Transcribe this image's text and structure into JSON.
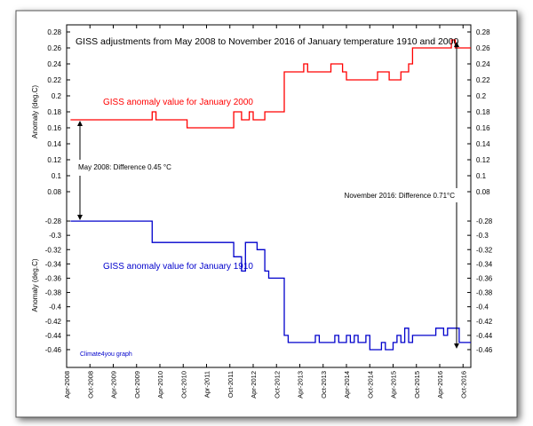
{
  "chart_data": {
    "type": "line",
    "title": "GISS adjustments from May 2008 to November 2016 of January temperature 1910 and 2000",
    "watermark": "Climate4you graph",
    "x_ticks": [
      "Apr-2008",
      "Oct-2008",
      "Apr-2009",
      "Oct-2009",
      "Apr-2010",
      "Oct-2010",
      "Apr-2011",
      "Oct-2011",
      "Apr-2012",
      "Oct-2012",
      "Apr-2013",
      "Oct-2013",
      "Apr-2014",
      "Oct-2014",
      "Apr-2015",
      "Oct-2015",
      "Apr-2016",
      "Oct-2016"
    ],
    "x_range": [
      "2008-04",
      "2016-12"
    ],
    "panels": [
      {
        "ylabel": "Anomaly (deg.C)",
        "ylim": [
          0.08,
          0.28
        ],
        "y_ticks": [
          "0.08",
          "0.1",
          "0.12",
          "0.14",
          "0.16",
          "0.18",
          "0.2",
          "0.22",
          "0.24",
          "0.26",
          "0.28"
        ],
        "series": [
          {
            "name": "GISS anomaly value for January 2000",
            "color": "#ff0000",
            "x": [
              "2008-05",
              "2010-02",
              "2010-03",
              "2010-11",
              "2011-11",
              "2012-01",
              "2012-03",
              "2012-04",
              "2012-07",
              "2012-12",
              "2013-05",
              "2013-06",
              "2013-12",
              "2014-03",
              "2014-04",
              "2014-12",
              "2015-03",
              "2015-06",
              "2015-08",
              "2015-09",
              "2016-07",
              "2016-08",
              "2016-12"
            ],
            "y": [
              0.17,
              0.18,
              0.17,
              0.16,
              0.18,
              0.17,
              0.18,
              0.17,
              0.18,
              0.23,
              0.24,
              0.23,
              0.24,
              0.23,
              0.22,
              0.23,
              0.22,
              0.23,
              0.24,
              0.26,
              0.27,
              0.26,
              0.26
            ]
          }
        ]
      },
      {
        "ylabel": "Anomaly (deg.C)",
        "ylim": [
          -0.47,
          -0.27
        ],
        "y_ticks": [
          "-0.28",
          "-0.3",
          "-0.32",
          "-0.34",
          "-0.36",
          "-0.38",
          "-0.4",
          "-0.42",
          "-0.44",
          "-0.46"
        ],
        "series": [
          {
            "name": "GISS anomaly value for January 1910",
            "color": "#0000cc",
            "x": [
              "2008-05",
              "2010-02",
              "2011-11",
              "2012-01",
              "2012-02",
              "2012-05",
              "2012-07",
              "2012-08",
              "2012-10",
              "2012-12",
              "2013-01",
              "2013-02",
              "2013-08",
              "2013-09",
              "2014-01",
              "2014-02",
              "2014-04",
              "2014-05",
              "2014-06",
              "2014-07",
              "2014-09",
              "2014-10",
              "2015-01",
              "2015-02",
              "2015-04",
              "2015-05",
              "2015-06",
              "2015-07",
              "2015-08",
              "2015-09",
              "2016-02",
              "2016-03",
              "2016-05",
              "2016-06",
              "2016-08",
              "2016-09",
              "2016-10",
              "2016-11",
              "2016-12"
            ],
            "y": [
              -0.28,
              -0.31,
              -0.33,
              -0.35,
              -0.31,
              -0.32,
              -0.35,
              -0.36,
              -0.36,
              -0.44,
              -0.45,
              -0.45,
              -0.44,
              -0.45,
              -0.44,
              -0.45,
              -0.44,
              -0.45,
              -0.44,
              -0.45,
              -0.44,
              -0.46,
              -0.45,
              -0.46,
              -0.45,
              -0.44,
              -0.45,
              -0.43,
              -0.45,
              -0.44,
              -0.44,
              -0.43,
              -0.44,
              -0.43,
              -0.43,
              -0.45,
              -0.45,
              -0.45,
              -0.45
            ]
          }
        ]
      }
    ],
    "annotations": [
      {
        "text": "May 2008: Difference 0.45 °C"
      },
      {
        "text": "November 2016: Difference 0.71°C"
      }
    ]
  }
}
